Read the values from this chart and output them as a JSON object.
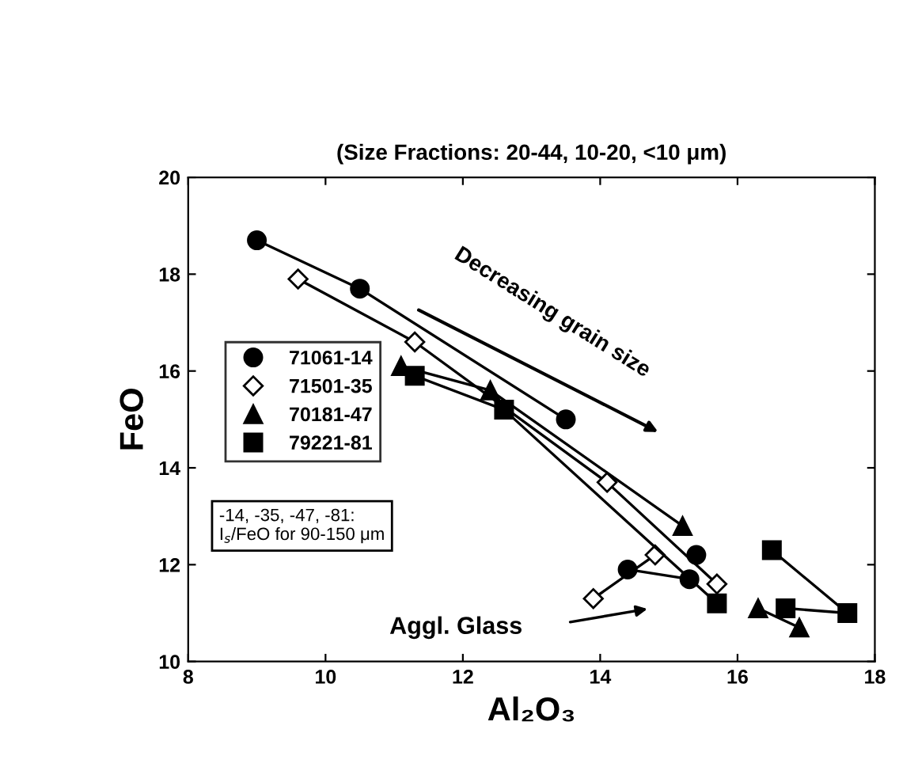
{
  "chart_data": {
    "type": "line",
    "title": "(Size Fractions: 20-44, 10-20, <10 μm)",
    "xlabel": "Al₂O₃",
    "ylabel": "FeO",
    "xlim": [
      8,
      18
    ],
    "xticks": [
      8,
      10,
      12,
      14,
      16,
      18
    ],
    "ylim": [
      10,
      20
    ],
    "yticks": [
      10,
      12,
      14,
      16,
      18,
      20
    ],
    "grid": false,
    "legend": "left",
    "line_style": "solid",
    "series": [
      {
        "name": "71061-14",
        "color": "#000000",
        "marker": "circle",
        "x": [
          9.0,
          10.5,
          13.5,
          null,
          14.4,
          15.3,
          null,
          15.4
        ],
        "values": [
          18.7,
          17.7,
          15.0,
          null,
          11.9,
          11.7,
          null,
          12.2
        ]
      },
      {
        "name": "71501-35",
        "color": "#000000",
        "marker": "diamond",
        "x": [
          9.6,
          11.3,
          14.1,
          15.7,
          null,
          13.9,
          14.8
        ],
        "values": [
          17.9,
          16.6,
          13.7,
          11.6,
          null,
          11.3,
          12.2
        ]
      },
      {
        "name": "70181-47",
        "color": "#000000",
        "marker": "triangle",
        "x": [
          11.1,
          12.4,
          15.2,
          null,
          16.3,
          16.9
        ],
        "values": [
          16.1,
          15.6,
          12.8,
          null,
          11.1,
          10.7
        ]
      },
      {
        "name": "79221-81",
        "color": "#000000",
        "marker": "square",
        "x": [
          11.3,
          12.6,
          15.7,
          null,
          16.5,
          17.6,
          16.7
        ],
        "values": [
          15.9,
          15.2,
          11.2,
          null,
          12.3,
          11.0,
          11.1
        ]
      }
    ],
    "annotations": [
      "Decreasing grain size",
      "Aggl. Glass",
      "-14, -35, -47, -81:\nI$_{s}$/FeO for 90-150 μm"
    ]
  }
}
